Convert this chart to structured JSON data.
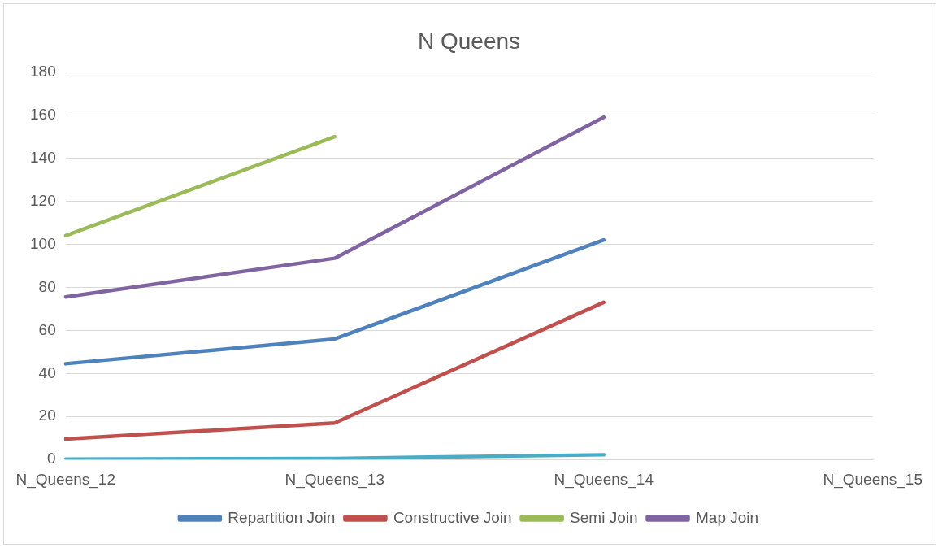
{
  "chart_data": {
    "type": "line",
    "title": "N Queens",
    "categories": [
      "N_Queens_12",
      "N_Queens_13",
      "N_Queens_14",
      "N_Queens_15"
    ],
    "series": [
      {
        "name": "Repartition Join",
        "color": "#4f81bd",
        "values": [
          44.5,
          56,
          102,
          null
        ]
      },
      {
        "name": "Constructive Join",
        "color": "#c0504d",
        "values": [
          9.5,
          17,
          73,
          null
        ]
      },
      {
        "name": "Semi Join",
        "color": "#9bbb59",
        "values": [
          104,
          150,
          null,
          null
        ]
      },
      {
        "name": "Map Join",
        "color": "#8064a2",
        "values": [
          75.5,
          93.5,
          159,
          null
        ]
      },
      {
        "color": "#4bacc6",
        "values": [
          0.2,
          0.5,
          2.2,
          null
        ]
      }
    ],
    "ylim": [
      0,
      180
    ],
    "yticks": [
      0,
      20,
      40,
      60,
      80,
      100,
      120,
      140,
      160,
      180
    ],
    "grid": "y",
    "legend": "bottom",
    "marker": "none",
    "line_style": "solid"
  }
}
